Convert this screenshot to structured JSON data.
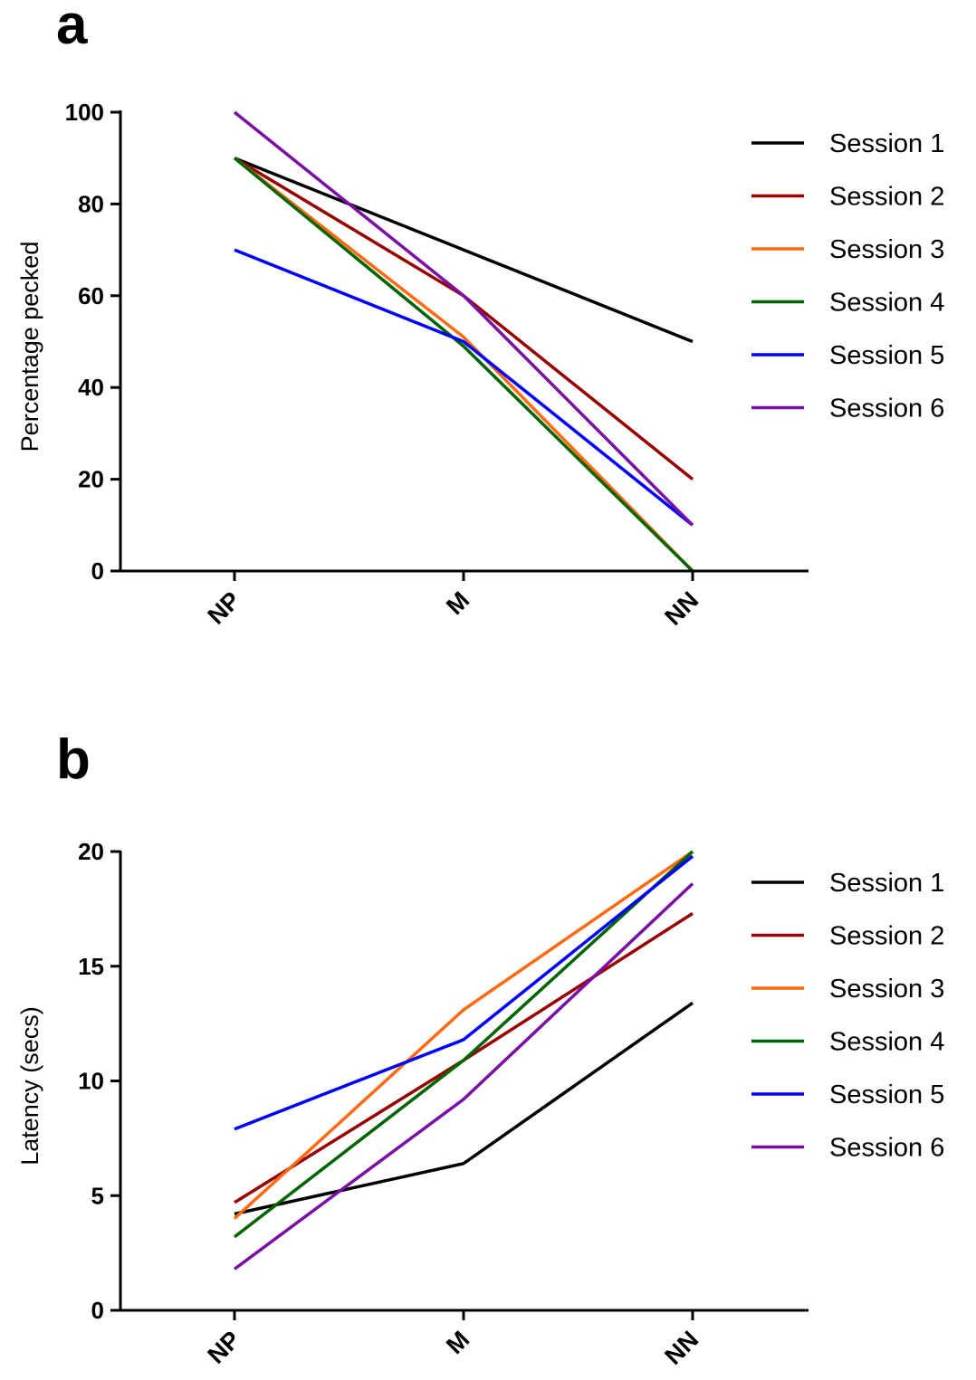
{
  "chart_data": [
    {
      "panel": "a",
      "type": "line",
      "categories": [
        "NP",
        "M",
        "NN"
      ],
      "ylabel": "Percentage pecked",
      "xlabel": "",
      "ylim": [
        0,
        100
      ],
      "yticks": [
        0,
        20,
        40,
        60,
        80,
        100
      ],
      "grid": false,
      "legend_position": "right",
      "series": [
        {
          "name": "Session 1",
          "color": "#000000",
          "values": [
            90,
            70,
            50
          ]
        },
        {
          "name": "Session 2",
          "color": "#990000",
          "values": [
            90,
            60,
            20
          ]
        },
        {
          "name": "Session 3",
          "color": "#ff6a10",
          "values": [
            90,
            51,
            0
          ]
        },
        {
          "name": "Session 4",
          "color": "#006400",
          "values": [
            90,
            49,
            0
          ]
        },
        {
          "name": "Session 5",
          "color": "#0000ff",
          "values": [
            70,
            50,
            10
          ]
        },
        {
          "name": "Session 6",
          "color": "#7a0fa3",
          "values": [
            100,
            60,
            10
          ]
        }
      ]
    },
    {
      "panel": "b",
      "type": "line",
      "categories": [
        "NP",
        "M",
        "NN"
      ],
      "ylabel": "Latency (secs)",
      "xlabel": "",
      "ylim": [
        0,
        20
      ],
      "yticks": [
        0,
        5,
        10,
        15,
        20
      ],
      "grid": false,
      "legend_position": "right",
      "series": [
        {
          "name": "Session 1",
          "color": "#000000",
          "values": [
            4.2,
            6.4,
            13.4
          ]
        },
        {
          "name": "Session 2",
          "color": "#990000",
          "values": [
            4.7,
            10.9,
            17.3
          ]
        },
        {
          "name": "Session 3",
          "color": "#ff6a10",
          "values": [
            4.0,
            13.1,
            20.0
          ]
        },
        {
          "name": "Session 4",
          "color": "#006400",
          "values": [
            3.2,
            10.9,
            20.0
          ]
        },
        {
          "name": "Session 5",
          "color": "#0000ff",
          "values": [
            7.9,
            11.8,
            19.8
          ]
        },
        {
          "name": "Session 6",
          "color": "#7a0fa3",
          "values": [
            1.8,
            9.2,
            18.6
          ]
        }
      ]
    }
  ]
}
